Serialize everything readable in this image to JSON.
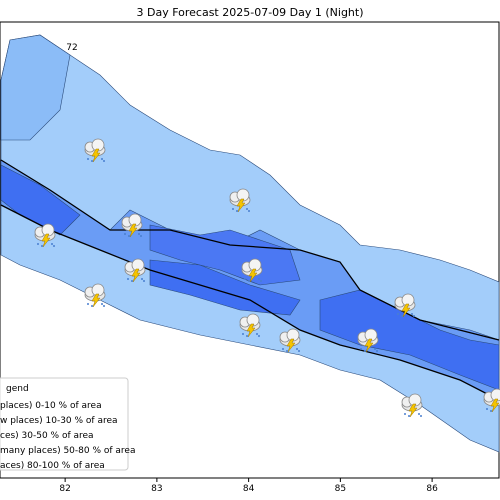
{
  "title": "3 Day Forecast 2025-07-09 Day 1 (Night)",
  "map_label": "72",
  "xlim": [
    81.29,
    86.74
  ],
  "xticks": [
    82,
    83,
    84,
    85,
    86
  ],
  "legend": {
    "title": "gend",
    "entries": [
      "places)  0-10 % of area",
      "w places) 10-30 % of area",
      "ces) 30-50  % of area",
      "many places) 50-80 % of area",
      "aces) 80-100 % of area"
    ]
  }
}
